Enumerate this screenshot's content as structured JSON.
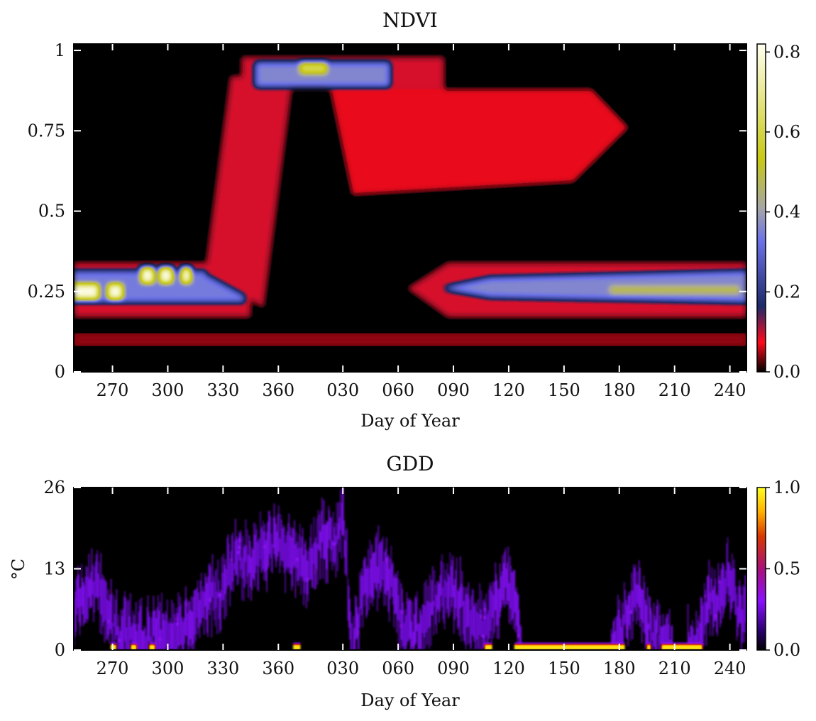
{
  "chart_data": [
    {
      "type": "heatmap",
      "title": "NDVI",
      "xlabel": "Day of Year",
      "ylabel": "",
      "x_range_doy_continuous": [
        249,
        614
      ],
      "x_tick_positions_doy_continuous": [
        270,
        300,
        330,
        360,
        395,
        425,
        455,
        485,
        515,
        545,
        575,
        605
      ],
      "x_tick_labels": [
        "270",
        "300",
        "330",
        "360",
        "030",
        "060",
        "090",
        "120",
        "150",
        "180",
        "210",
        "240"
      ],
      "ylim": [
        0,
        1.02
      ],
      "y_ticks": [
        0,
        0.25,
        0.5,
        0.75,
        1
      ],
      "y_tick_labels": [
        "0",
        "0.25",
        "0.5",
        "0.75",
        "1"
      ],
      "colorbar": {
        "range": [
          0,
          0.82
        ],
        "ticks": [
          0.0,
          0.2,
          0.4,
          0.6,
          0.8
        ],
        "tick_labels": [
          "0.0",
          "0.2",
          "0.4",
          "0.6",
          "0.8"
        ],
        "colors": [
          "#000000",
          "#ff0a1c",
          "#1c2a6a",
          "#6c72e8",
          "#a6a6a6",
          "#c8c814",
          "#fffff0"
        ],
        "stops": [
          0,
          0.09,
          0.2,
          0.4,
          0.5,
          0.65,
          1
        ]
      },
      "features": [
        {
          "name": "pre-season low band",
          "doy_start": 249,
          "doy_end": 345,
          "ndvi_low": 0.17,
          "ndvi_high": 0.34,
          "peak_density": 0.8
        },
        {
          "name": "green-up ramp",
          "doy_start": 320,
          "doy_end": 368,
          "ndvi_start": 0.25,
          "ndvi_end": 0.92
        },
        {
          "name": "peak plateau",
          "doy_start": 340,
          "doy_end": 450,
          "ndvi_low": 0.88,
          "ndvi_high": 0.98,
          "peak_density": 0.62
        },
        {
          "name": "senescence spread",
          "doy_start": 388,
          "doy_end": 550,
          "ndvi_low": 0.55,
          "ndvi_high": 0.88,
          "density": 0.08
        },
        {
          "name": "post-season band",
          "doy_start": 430,
          "doy_end": 614,
          "ndvi_low": 0.17,
          "ndvi_high": 0.34,
          "peak_density": 0.5
        },
        {
          "name": "faint low band",
          "doy_start": 249,
          "doy_end": 614,
          "ndvi_low": 0.08,
          "ndvi_high": 0.12,
          "density": 0.04
        }
      ]
    },
    {
      "type": "heatmap",
      "title": "GDD",
      "xlabel": "Day of Year",
      "ylabel": "°C",
      "x_range_doy_continuous": [
        249,
        614
      ],
      "x_tick_positions_doy_continuous": [
        270,
        300,
        330,
        360,
        395,
        425,
        455,
        485,
        515,
        545,
        575,
        605
      ],
      "x_tick_labels": [
        "270",
        "300",
        "330",
        "360",
        "030",
        "060",
        "090",
        "120",
        "150",
        "180",
        "210",
        "240"
      ],
      "ylim": [
        0,
        26
      ],
      "y_ticks": [
        0,
        13,
        26
      ],
      "y_tick_labels": [
        "0",
        "13",
        "26"
      ],
      "colorbar": {
        "range": [
          0,
          1.0
        ],
        "ticks": [
          0.0,
          0.5,
          1.0
        ],
        "tick_labels": [
          "0.0",
          "0.5",
          "1.0"
        ],
        "colors": [
          "#000000",
          "#2a0070",
          "#8a10ff",
          "#a8107a",
          "#d83800",
          "#ffb000",
          "#ffff20"
        ],
        "stops": [
          0,
          0.12,
          0.3,
          0.5,
          0.7,
          0.85,
          1
        ]
      },
      "approx_daily_mean_gdd": {
        "doy": [
          249,
          255,
          262,
          268,
          275,
          282,
          290,
          298,
          305,
          312,
          320,
          328,
          335,
          342,
          350,
          358,
          366,
          375,
          383,
          390,
          395,
          400,
          405,
          410,
          418,
          425,
          432,
          440,
          447,
          455,
          462,
          470,
          478,
          484,
          488,
          492,
          500,
          510,
          520,
          530,
          540,
          545,
          550,
          556,
          562,
          568,
          575,
          580,
          586,
          592,
          598,
          604,
          610,
          614
        ],
        "gdd": [
          6,
          9,
          10,
          5,
          2,
          3,
          2,
          3,
          2,
          6,
          8,
          9,
          14,
          14,
          16,
          17,
          16,
          13,
          18,
          17,
          21,
          0,
          8,
          13,
          13,
          6,
          2,
          5,
          9,
          9,
          7,
          3,
          8,
          11,
          8,
          0,
          0,
          0,
          0,
          0,
          0,
          3,
          7,
          9,
          3,
          2,
          0,
          0,
          1,
          7,
          8,
          12,
          6,
          7
        ]
      },
      "zero_floor_segments_doy": [
        [
          269,
          272
        ],
        [
          280,
          283
        ],
        [
          290,
          293
        ],
        [
          368,
          372
        ],
        [
          472,
          476
        ],
        [
          488,
          548
        ],
        [
          560,
          562
        ],
        [
          568,
          590
        ]
      ]
    }
  ]
}
